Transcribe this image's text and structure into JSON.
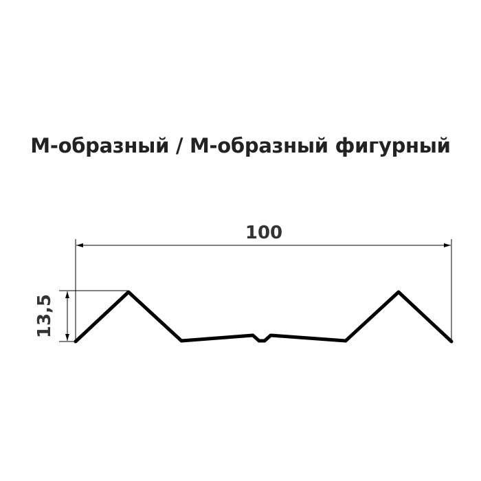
{
  "title": "М-образный / М-образный фигурный",
  "dimensions": {
    "width_label": "100",
    "height_label": "13,5"
  },
  "colors": {
    "profile": "#000000",
    "text": "#222222"
  }
}
